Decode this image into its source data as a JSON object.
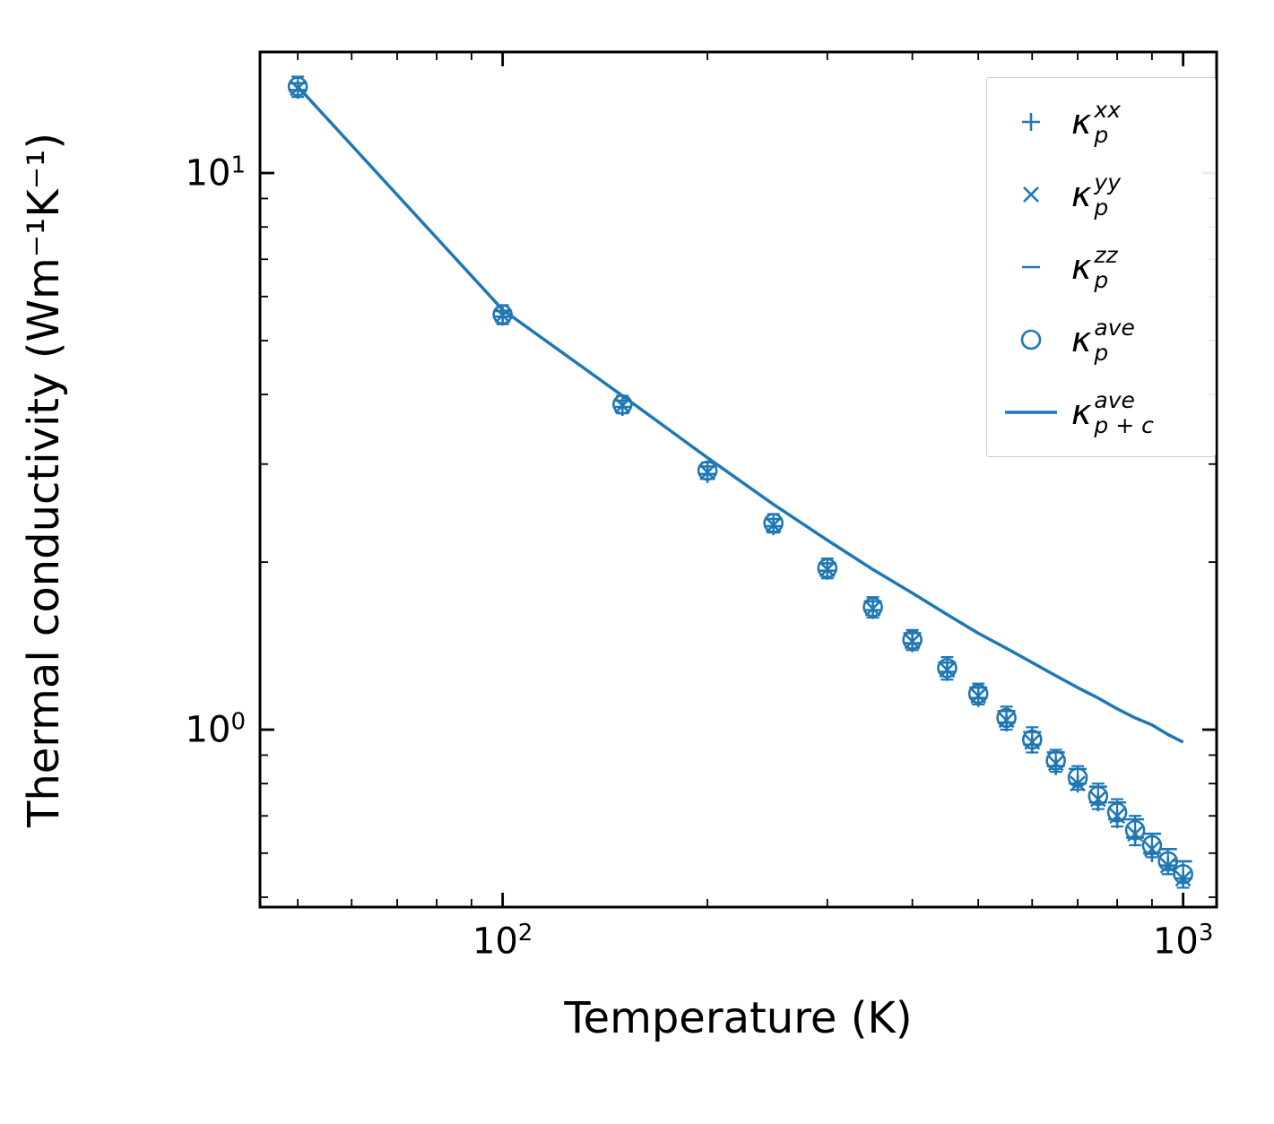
{
  "chart_data": {
    "type": "scatter",
    "title": "",
    "xlabel": "Temperature (K)",
    "ylabel": "Thermal conductivity (Wm⁻¹K⁻¹)",
    "x_scale": "log",
    "y_scale": "log",
    "xlim": [
      44,
      1120
    ],
    "ylim": [
      0.48,
      16.5
    ],
    "grid": false,
    "legend_position": "upper right",
    "color": "#1f77b4",
    "axis_color": "#000000",
    "xticks": [
      {
        "value": 100,
        "base": "10",
        "exp": "2"
      },
      {
        "value": 1000,
        "base": "10",
        "exp": "3"
      }
    ],
    "yticks": [
      {
        "value": 1,
        "base": "10",
        "exp": "0"
      },
      {
        "value": 10,
        "base": "10",
        "exp": "1"
      }
    ],
    "x": [
      50,
      100,
      150,
      200,
      250,
      300,
      350,
      400,
      450,
      500,
      550,
      600,
      650,
      700,
      750,
      800,
      850,
      900,
      950,
      1000
    ],
    "series": [
      {
        "name": "kappa_p_xx",
        "marker": "plus",
        "label": {
          "base": "κ",
          "sup": "xx",
          "sub": "p"
        },
        "values": [
          14.1,
          5.52,
          3.8,
          2.88,
          2.32,
          1.93,
          1.64,
          1.43,
          1.27,
          1.14,
          1.03,
          0.94,
          0.86,
          0.8,
          0.74,
          0.69,
          0.64,
          0.6,
          0.57,
          0.54
        ]
      },
      {
        "name": "kappa_p_yy",
        "marker": "cross",
        "label": {
          "base": "κ",
          "sup": "yy",
          "sub": "p"
        },
        "values": [
          14.2,
          5.55,
          3.82,
          2.9,
          2.33,
          1.94,
          1.65,
          1.44,
          1.28,
          1.15,
          1.04,
          0.95,
          0.87,
          0.8,
          0.75,
          0.7,
          0.65,
          0.61,
          0.57,
          0.54
        ]
      },
      {
        "name": "kappa_p_zz",
        "marker": "dash",
        "label": {
          "base": "κ",
          "sup": "zz",
          "sub": "p"
        },
        "values": [
          14.5,
          5.65,
          3.9,
          2.97,
          2.39,
          1.99,
          1.7,
          1.49,
          1.32,
          1.19,
          1.08,
          0.99,
          0.91,
          0.85,
          0.79,
          0.74,
          0.69,
          0.65,
          0.61,
          0.58
        ]
      },
      {
        "name": "kappa_p_ave",
        "marker": "circle",
        "label": {
          "base": "κ",
          "sup": "ave",
          "sub": "p"
        },
        "values": [
          14.3,
          5.57,
          3.84,
          2.92,
          2.35,
          1.95,
          1.66,
          1.45,
          1.29,
          1.16,
          1.05,
          0.96,
          0.88,
          0.82,
          0.76,
          0.71,
          0.66,
          0.62,
          0.58,
          0.55
        ],
        "yerr": [
          0.6,
          0.22,
          0.14,
          0.1,
          0.09,
          0.08,
          0.07,
          0.06,
          0.06,
          0.05,
          0.05,
          0.05,
          0.04,
          0.04,
          0.04,
          0.04,
          0.04,
          0.03,
          0.03,
          0.03
        ]
      },
      {
        "name": "kappa_p_plus_c_ave",
        "marker": "line",
        "label": {
          "base": "κ",
          "sup": "ave",
          "sub": "p + c"
        },
        "values": [
          14.3,
          5.68,
          3.98,
          3.08,
          2.54,
          2.19,
          1.94,
          1.76,
          1.61,
          1.49,
          1.4,
          1.32,
          1.25,
          1.19,
          1.14,
          1.09,
          1.05,
          1.02,
          0.98,
          0.95
        ]
      }
    ]
  }
}
